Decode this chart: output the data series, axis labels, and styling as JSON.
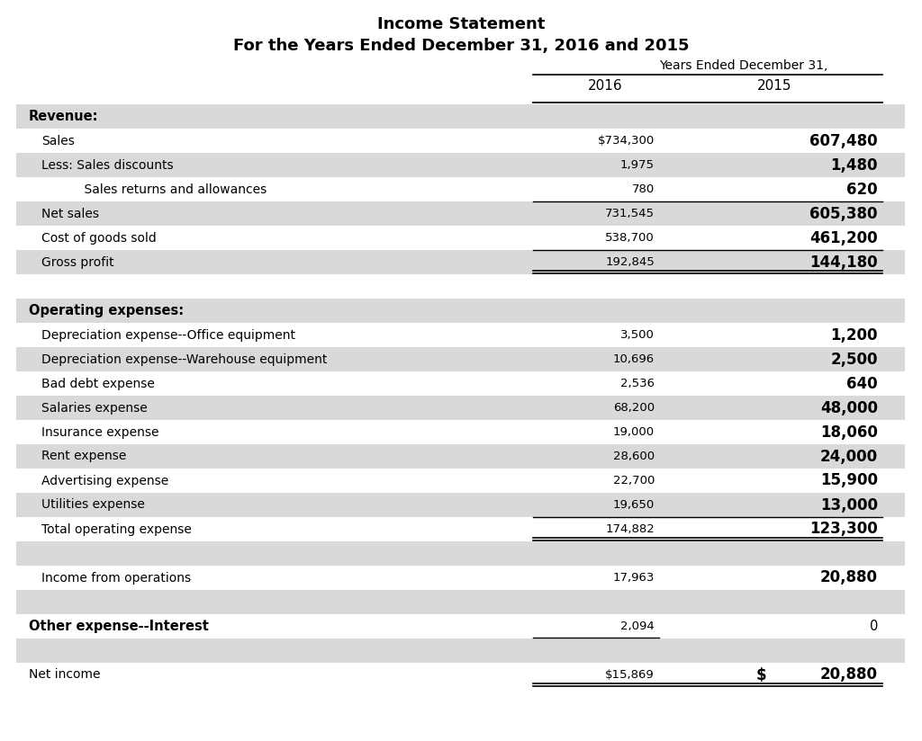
{
  "title1": "Income Statement",
  "title2": "For the Years Ended December 31, 2016 and 2015",
  "col_header": "Years Ended December 31,",
  "col2016": "2016",
  "col2015": "2015",
  "rows": [
    {
      "label": "Revenue:",
      "val2016": "",
      "val2015": "",
      "bold": true,
      "indent": 0,
      "shaded": true,
      "line_above": false,
      "line_below": false,
      "double_below": false
    },
    {
      "label": "Sales",
      "val2016": "$734,300",
      "val2015": "607,480",
      "bold": false,
      "indent": 1,
      "shaded": false,
      "line_above": false,
      "line_below": false,
      "double_below": false
    },
    {
      "label": "Less: Sales discounts",
      "val2016": "1,975",
      "val2015": "1,480",
      "bold": false,
      "indent": 1,
      "shaded": true,
      "line_above": false,
      "line_below": false,
      "double_below": false
    },
    {
      "label": "    Sales returns and allowances",
      "val2016": "780",
      "val2015": "620",
      "bold": false,
      "indent": 2,
      "shaded": false,
      "line_above": false,
      "line_below": false,
      "double_below": false
    },
    {
      "label": "Net sales",
      "val2016": "731,545",
      "val2015": "605,380",
      "bold": false,
      "indent": 1,
      "shaded": true,
      "line_above": true,
      "line_below": false,
      "double_below": false
    },
    {
      "label": "Cost of goods sold",
      "val2016": "538,700",
      "val2015": "461,200",
      "bold": false,
      "indent": 1,
      "shaded": false,
      "line_above": false,
      "line_below": false,
      "double_below": false
    },
    {
      "label": "Gross profit",
      "val2016": "192,845",
      "val2015": "144,180",
      "bold": false,
      "indent": 1,
      "shaded": true,
      "line_above": true,
      "line_below": false,
      "double_below": true
    },
    {
      "label": "",
      "val2016": "",
      "val2015": "",
      "bold": false,
      "indent": 0,
      "shaded": false,
      "line_above": false,
      "line_below": false,
      "double_below": false
    },
    {
      "label": "Operating expenses:",
      "val2016": "",
      "val2015": "",
      "bold": true,
      "indent": 0,
      "shaded": true,
      "line_above": false,
      "line_below": false,
      "double_below": false
    },
    {
      "label": "Depreciation expense--Office equipment",
      "val2016": "3,500",
      "val2015": "1,200",
      "bold": false,
      "indent": 1,
      "shaded": false,
      "line_above": false,
      "line_below": false,
      "double_below": false
    },
    {
      "label": "Depreciation expense--Warehouse equipment",
      "val2016": "10,696",
      "val2015": "2,500",
      "bold": false,
      "indent": 1,
      "shaded": true,
      "line_above": false,
      "line_below": false,
      "double_below": false
    },
    {
      "label": "Bad debt expense",
      "val2016": "2,536",
      "val2015": "640",
      "bold": false,
      "indent": 1,
      "shaded": false,
      "line_above": false,
      "line_below": false,
      "double_below": false
    },
    {
      "label": "Salaries expense",
      "val2016": "68,200",
      "val2015": "48,000",
      "bold": false,
      "indent": 1,
      "shaded": true,
      "line_above": false,
      "line_below": false,
      "double_below": false
    },
    {
      "label": "Insurance expense",
      "val2016": "19,000",
      "val2015": "18,060",
      "bold": false,
      "indent": 1,
      "shaded": false,
      "line_above": false,
      "line_below": false,
      "double_below": false
    },
    {
      "label": "Rent expense",
      "val2016": "28,600",
      "val2015": "24,000",
      "bold": false,
      "indent": 1,
      "shaded": true,
      "line_above": false,
      "line_below": false,
      "double_below": false
    },
    {
      "label": "Advertising expense",
      "val2016": "22,700",
      "val2015": "15,900",
      "bold": false,
      "indent": 1,
      "shaded": false,
      "line_above": false,
      "line_below": false,
      "double_below": false
    },
    {
      "label": "Utilities expense",
      "val2016": "19,650",
      "val2015": "13,000",
      "bold": false,
      "indent": 1,
      "shaded": true,
      "line_above": false,
      "line_below": false,
      "double_below": false
    },
    {
      "label": "Total operating expense",
      "val2016": "174,882",
      "val2015": "123,300",
      "bold": false,
      "indent": 1,
      "shaded": false,
      "line_above": true,
      "line_below": false,
      "double_below": true
    },
    {
      "label": "",
      "val2016": "",
      "val2015": "",
      "bold": false,
      "indent": 0,
      "shaded": true,
      "line_above": false,
      "line_below": false,
      "double_below": false
    },
    {
      "label": "Income from operations",
      "val2016": "17,963",
      "val2015": "20,880",
      "bold": false,
      "indent": 1,
      "shaded": false,
      "line_above": false,
      "line_below": false,
      "double_below": false
    },
    {
      "label": "",
      "val2016": "",
      "val2015": "",
      "bold": false,
      "indent": 0,
      "shaded": true,
      "line_above": false,
      "line_below": false,
      "double_below": false
    },
    {
      "label": "Other expense--Interest",
      "val2016": "2,094",
      "val2015": "0",
      "bold": true,
      "indent": 0,
      "shaded": false,
      "line_above": false,
      "line_below": true,
      "double_below": false,
      "line2016only": true
    },
    {
      "label": "",
      "val2016": "",
      "val2015": "",
      "bold": false,
      "indent": 0,
      "shaded": true,
      "line_above": false,
      "line_below": false,
      "double_below": false
    },
    {
      "label": "Net income",
      "val2016": "$15,869",
      "val2015_dollar": "$",
      "val2015": "20,880",
      "bold": false,
      "indent": 0,
      "shaded": false,
      "line_above": false,
      "line_below": false,
      "double_below": true
    }
  ],
  "bg_color": "#ffffff",
  "shade_color": "#d9d9d9",
  "text_color": "#000000"
}
